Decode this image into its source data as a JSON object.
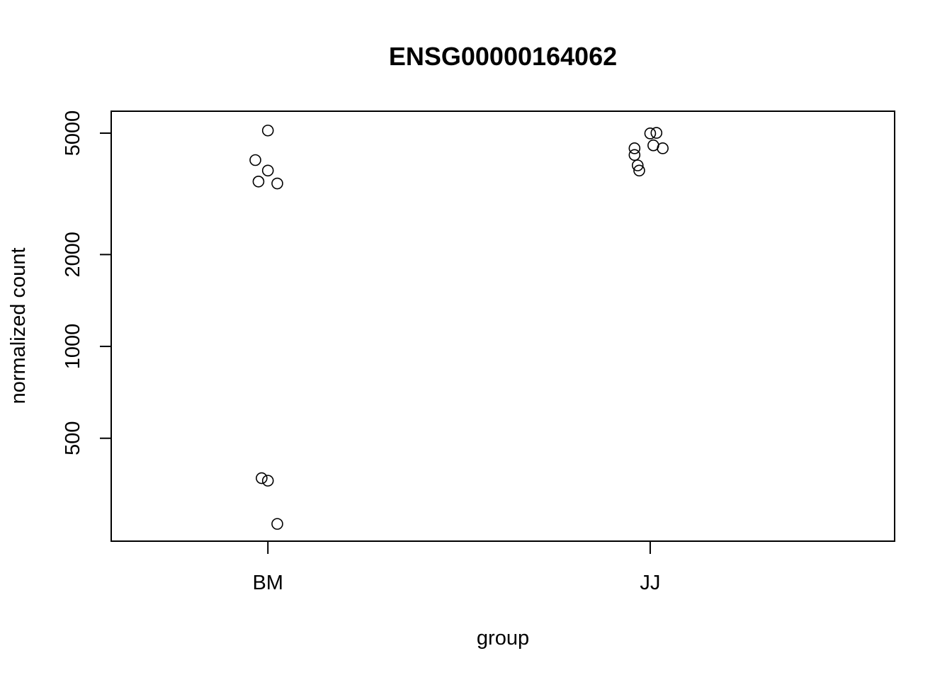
{
  "chart_data": {
    "type": "scatter",
    "title": "ENSG00000164062",
    "xlabel": "group",
    "ylabel": "normalized count",
    "y_scale": "log",
    "categories": [
      "BM",
      "JJ"
    ],
    "yticks": [
      500,
      1000,
      2000,
      5000
    ],
    "ylim": [
      230,
      5900
    ],
    "grid": false,
    "points": [
      {
        "group": "BM",
        "jitter": 0.0,
        "y": 5100
      },
      {
        "group": "BM",
        "jitter": -0.04,
        "y": 4080
      },
      {
        "group": "BM",
        "jitter": 0.0,
        "y": 3770
      },
      {
        "group": "BM",
        "jitter": -0.03,
        "y": 3470
      },
      {
        "group": "BM",
        "jitter": 0.03,
        "y": 3420
      },
      {
        "group": "BM",
        "jitter": -0.02,
        "y": 370
      },
      {
        "group": "BM",
        "jitter": 0.0,
        "y": 363
      },
      {
        "group": "BM",
        "jitter": 0.03,
        "y": 262
      },
      {
        "group": "JJ",
        "jitter": 0.0,
        "y": 4990
      },
      {
        "group": "JJ",
        "jitter": 0.02,
        "y": 5010
      },
      {
        "group": "JJ",
        "jitter": 0.01,
        "y": 4560
      },
      {
        "group": "JJ",
        "jitter": -0.05,
        "y": 4460
      },
      {
        "group": "JJ",
        "jitter": 0.04,
        "y": 4460
      },
      {
        "group": "JJ",
        "jitter": -0.05,
        "y": 4240
      },
      {
        "group": "JJ",
        "jitter": -0.04,
        "y": 3920
      },
      {
        "group": "JJ",
        "jitter": -0.035,
        "y": 3770
      }
    ]
  }
}
